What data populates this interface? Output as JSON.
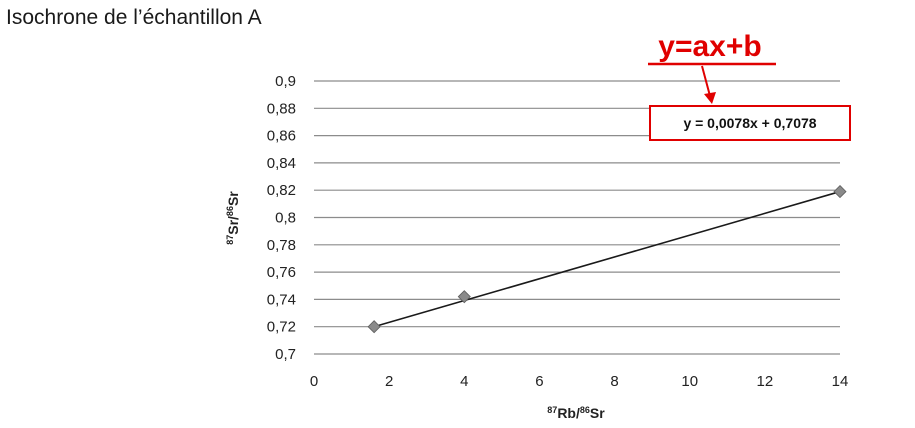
{
  "page": {
    "title": "Isochrone de l’échantillon A"
  },
  "colors": {
    "grid": "#8c8c8c",
    "line": "#1a1a1a",
    "marker": "#8a8a8a",
    "annotation": "#e00000"
  },
  "chart_data": {
    "type": "scatter",
    "title": "",
    "xlabel": {
      "sup1": "87",
      "base1": "Rb/",
      "sup2": "86",
      "base2": "Sr"
    },
    "ylabel": {
      "sup1": "87",
      "base1": "Sr/",
      "sup2": "86",
      "base2": "Sr"
    },
    "xlim": [
      0,
      14
    ],
    "ylim": [
      0.7,
      0.9
    ],
    "x_ticks": [
      0,
      2,
      4,
      6,
      8,
      10,
      12,
      14
    ],
    "x_tick_labels": [
      "0",
      "2",
      "4",
      "6",
      "8",
      "10",
      "12",
      "14"
    ],
    "y_ticks": [
      0.7,
      0.72,
      0.74,
      0.76,
      0.78,
      0.8,
      0.82,
      0.84,
      0.86,
      0.88,
      0.9
    ],
    "y_tick_labels": [
      "0,7",
      "0,72",
      "0,74",
      "0,76",
      "0,78",
      "0,8",
      "0,82",
      "0,84",
      "0,86",
      "0,88",
      "0,9"
    ],
    "grid": "horizontal",
    "series": [
      {
        "points": [
          {
            "x": 1.6,
            "y": 0.72
          },
          {
            "x": 4.0,
            "y": 0.742
          },
          {
            "x": 14.0,
            "y": 0.819
          }
        ]
      }
    ],
    "trendline": {
      "x": [
        1.6,
        14.0
      ],
      "y": [
        0.72,
        0.819
      ]
    },
    "equation": "y = 0,0078x + 0,7078",
    "annotation": "y=ax+b"
  }
}
